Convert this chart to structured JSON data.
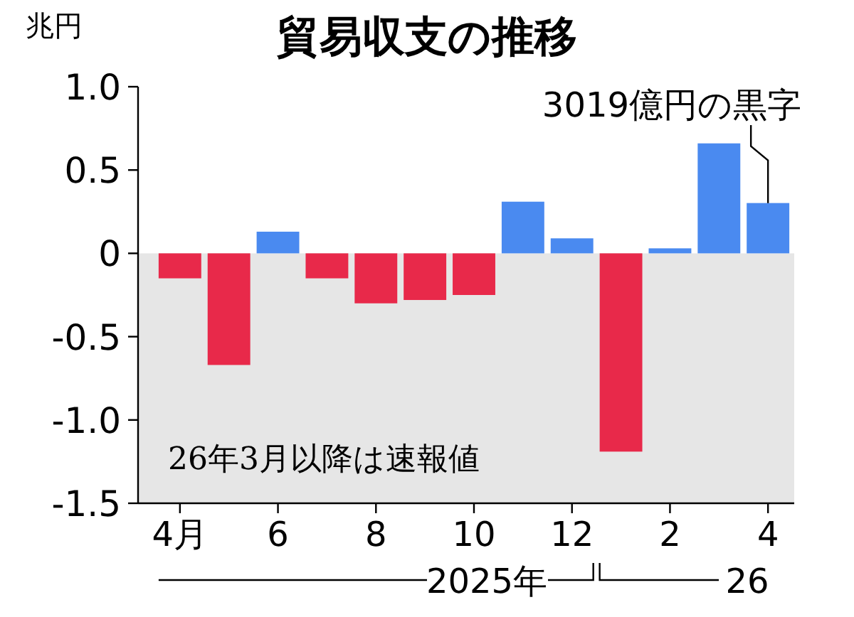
{
  "chart_data": {
    "type": "bar",
    "title": "貿易収支の推移",
    "ylabel": "兆円",
    "categories": [
      "4月",
      null,
      "6",
      null,
      "8",
      null,
      "10",
      null,
      "12",
      null,
      "2",
      null,
      "4"
    ],
    "values": [
      -0.15,
      -0.67,
      0.13,
      -0.15,
      -0.3,
      -0.28,
      -0.25,
      0.31,
      0.09,
      -1.19,
      0.03,
      0.66,
      0.3019
    ],
    "colors": [
      "#e8294a",
      "#e8294a",
      "#4a8af0",
      "#e8294a",
      "#e8294a",
      "#e8294a",
      "#e8294a",
      "#4a8af0",
      "#4a8af0",
      "#e8294a",
      "#4a8af0",
      "#4a8af0",
      "#4a8af0"
    ],
    "ylim": [
      -1.5,
      1
    ],
    "yticks": [
      {
        "value": 1,
        "label": "1.0"
      },
      0.5,
      0,
      -0.5,
      {
        "value": -1,
        "label": "-1.0"
      },
      -1.5
    ],
    "bands": [
      {
        "axis": "y",
        "from": -1.5,
        "to": 0,
        "color": "#e6e6e6"
      }
    ],
    "annotations": [
      {
        "text": "3019億円の黒字",
        "x": "4",
        "y": 0.3019
      },
      "26年3月以降は速報値",
      "2025年",
      "26"
    ]
  }
}
